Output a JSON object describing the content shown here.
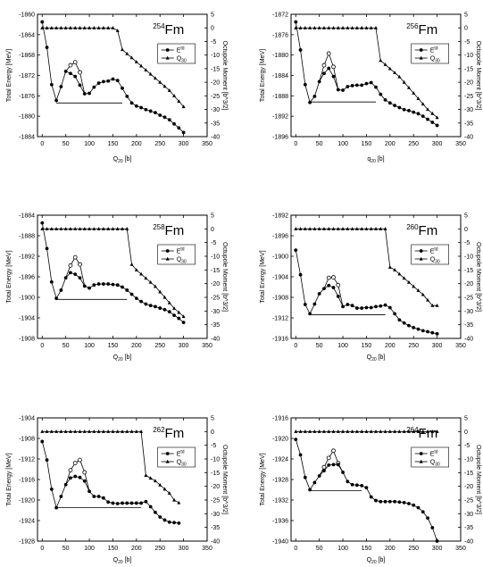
{
  "chart_data": [
    {
      "type": "line",
      "nucleus_mass": "254",
      "nucleus_sym": "Fm",
      "xlabel_main": "Q",
      "xlabel_sub": "20",
      "xlabel_unit": " [b]",
      "ylabel_left": "Total Energy [MeV]",
      "ylabel_right": "Octupole Moment [b^3/2]",
      "legend": [
        {
          "main": "E",
          "sup": "td"
        },
        {
          "main": "Q",
          "sub": "30"
        }
      ],
      "xlim": [
        -10,
        350
      ],
      "ylim": [
        -1884,
        -1860
      ],
      "y2lim": [
        -40,
        5
      ],
      "xticks": [
        0,
        50,
        100,
        150,
        200,
        250,
        300,
        350
      ],
      "yticks": [
        -1884,
        -1880,
        -1876,
        -1872,
        -1868,
        -1864,
        -1860
      ],
      "y2ticks": [
        5,
        0,
        -5,
        -10,
        -15,
        -20,
        -25,
        -30,
        -35,
        -40
      ],
      "energy_x": [
        0,
        10,
        20,
        30,
        40,
        50,
        60,
        70,
        80,
        90,
        100,
        110,
        120,
        130,
        140,
        150,
        160,
        170,
        180,
        190,
        200,
        210,
        220,
        230,
        240,
        250,
        260,
        270,
        280,
        290,
        300
      ],
      "energy_y": [
        -1861.5,
        -1866.5,
        -1873.8,
        -1876.9,
        -1874.2,
        -1871.2,
        -1871.6,
        -1872.2,
        -1873.9,
        -1875.6,
        -1875.5,
        -1874.3,
        -1873.5,
        -1873.2,
        -1873.1,
        -1872.7,
        -1873.0,
        -1874.5,
        -1876.1,
        -1877.4,
        -1878.0,
        -1878.3,
        -1878.7,
        -1879.0,
        -1879.3,
        -1879.8,
        -1880.2,
        -1880.7,
        -1881.5,
        -1882.3,
        -1883.2
      ],
      "energy_open_x": [
        60,
        70,
        80
      ],
      "energy_open_y": [
        -1870.0,
        -1869.4,
        -1871.4
      ],
      "barrier": {
        "x1": 30,
        "x2": 170,
        "y": -1877.4
      },
      "q30_x": [
        0,
        10,
        20,
        30,
        40,
        50,
        60,
        70,
        80,
        90,
        100,
        110,
        120,
        130,
        140,
        150,
        160,
        170,
        180,
        190,
        200,
        210,
        220,
        230,
        240,
        250,
        260,
        270,
        280,
        290,
        300
      ],
      "q30_y": [
        0,
        0,
        0,
        0,
        0,
        0,
        0,
        0,
        0,
        0,
        0,
        0,
        0,
        0,
        0,
        0,
        -1,
        -8,
        -9.5,
        -11,
        -12.5,
        -14,
        -15.5,
        -17,
        -18.5,
        -20,
        -21.5,
        -23,
        -25,
        -27,
        -29
      ]
    },
    {
      "type": "line",
      "nucleus_mass": "256",
      "nucleus_sym": "Fm",
      "xlabel_main": "q",
      "xlabel_sub": "20",
      "xlabel_unit": " [b]",
      "ylabel_left": "Total Energy [MeV]",
      "ylabel_right": "Octupole Moment [b^3/2]",
      "legend": [
        {
          "main": "E",
          "sup": "td"
        },
        {
          "main": "Q",
          "sub": "30"
        }
      ],
      "xlim": [
        -10,
        350
      ],
      "ylim": [
        -1896,
        -1872
      ],
      "y2lim": [
        -40,
        5
      ],
      "xticks": [
        0,
        50,
        100,
        150,
        200,
        250,
        300,
        350
      ],
      "yticks": [
        -1896,
        -1892,
        -1888,
        -1884,
        -1880,
        -1876,
        -1872
      ],
      "y2ticks": [
        5,
        0,
        -5,
        -10,
        -15,
        -20,
        -25,
        -30,
        -35,
        -40
      ],
      "energy_x": [
        0,
        10,
        20,
        30,
        40,
        50,
        60,
        70,
        80,
        90,
        100,
        110,
        120,
        130,
        140,
        150,
        160,
        170,
        180,
        190,
        200,
        210,
        220,
        230,
        240,
        250,
        260,
        270,
        280,
        290,
        300
      ],
      "energy_y": [
        -1873.5,
        -1879.0,
        -1885.8,
        -1889.3,
        -1888.1,
        -1885.2,
        -1883.6,
        -1882.6,
        -1884.2,
        -1886.8,
        -1886.9,
        -1886.2,
        -1886.0,
        -1885.9,
        -1885.9,
        -1885.6,
        -1885.4,
        -1886.3,
        -1887.7,
        -1888.8,
        -1889.4,
        -1889.9,
        -1890.3,
        -1890.7,
        -1890.9,
        -1891.2,
        -1891.5,
        -1892.0,
        -1892.6,
        -1893.2,
        -1893.8
      ],
      "energy_open_x": [
        60,
        70,
        80
      ],
      "energy_open_y": [
        -1882.0,
        -1879.7,
        -1882.3
      ],
      "barrier": {
        "x1": 30,
        "x2": 170,
        "y": -1889.2
      },
      "q30_x": [
        0,
        10,
        20,
        30,
        40,
        50,
        60,
        70,
        80,
        90,
        100,
        110,
        120,
        130,
        140,
        150,
        160,
        170,
        180,
        190,
        200,
        210,
        220,
        230,
        240,
        250,
        260,
        270,
        280,
        290,
        300
      ],
      "q30_y": [
        0,
        0,
        0,
        0,
        0,
        0,
        0,
        0,
        0,
        0,
        0,
        0,
        0,
        0,
        0,
        0,
        0,
        0,
        -12,
        -13.5,
        -15,
        -16.5,
        -18,
        -20,
        -22,
        -24,
        -26,
        -28,
        -30,
        -31.5,
        -33
      ]
    },
    {
      "type": "line",
      "nucleus_mass": "258",
      "nucleus_sym": "Fm",
      "xlabel_main": "Q",
      "xlabel_sub": "20",
      "xlabel_unit": " [b]",
      "ylabel_left": "Total Energy [MeV]",
      "ylabel_right": "Octupole Moment [b^3/2]",
      "legend": [
        {
          "main": "E",
          "sup": "td"
        },
        {
          "main": "Q",
          "sub": "30"
        }
      ],
      "xlim": [
        -10,
        350
      ],
      "ylim": [
        -1908,
        -1884
      ],
      "y2lim": [
        -40,
        5
      ],
      "xticks": [
        0,
        50,
        100,
        150,
        200,
        250,
        300,
        350
      ],
      "yticks": [
        -1908,
        -1904,
        -1900,
        -1896,
        -1892,
        -1888,
        -1884
      ],
      "y2ticks": [
        5,
        0,
        -5,
        -10,
        -15,
        -20,
        -25,
        -30,
        -35,
        -40
      ],
      "energy_x": [
        0,
        10,
        20,
        30,
        40,
        50,
        60,
        70,
        80,
        90,
        100,
        110,
        120,
        130,
        140,
        150,
        160,
        170,
        180,
        190,
        200,
        210,
        220,
        230,
        240,
        250,
        260,
        270,
        280,
        290,
        300
      ],
      "energy_y": [
        -1885.5,
        -1890.5,
        -1897.0,
        -1900.2,
        -1898.6,
        -1896.2,
        -1895.2,
        -1895.5,
        -1896.2,
        -1897.8,
        -1898.2,
        -1897.6,
        -1897.4,
        -1897.4,
        -1897.4,
        -1897.5,
        -1897.6,
        -1898.0,
        -1898.6,
        -1899.4,
        -1900.2,
        -1900.8,
        -1901.3,
        -1901.6,
        -1901.8,
        -1902.1,
        -1902.4,
        -1902.8,
        -1903.5,
        -1904.1,
        -1904.9
      ],
      "energy_open_x": [
        60,
        70,
        80
      ],
      "energy_open_y": [
        -1893.8,
        -1892.2,
        -1893.6
      ],
      "barrier": {
        "x1": 30,
        "x2": 180,
        "y": -1900.4
      },
      "q30_x": [
        0,
        10,
        20,
        30,
        40,
        50,
        60,
        70,
        80,
        90,
        100,
        110,
        120,
        130,
        140,
        150,
        160,
        170,
        180,
        190,
        200,
        210,
        220,
        230,
        240,
        250,
        260,
        270,
        280,
        290,
        300
      ],
      "q30_y": [
        0,
        0,
        0,
        0,
        0,
        0,
        0,
        0,
        0,
        0,
        0,
        0,
        0,
        0,
        0,
        0,
        0,
        0,
        0,
        -13,
        -15,
        -16.5,
        -18,
        -19.5,
        -21,
        -23,
        -25,
        -27,
        -29,
        -30.5,
        -32
      ]
    },
    {
      "type": "line",
      "nucleus_mass": "260",
      "nucleus_sym": "Fm",
      "xlabel_main": "Q",
      "xlabel_sub": "20",
      "xlabel_unit": " [b]",
      "ylabel_left": "Total Energy [MeV]",
      "ylabel_right": "Octupole Moment [b^3/2]",
      "legend": [
        {
          "main": "E",
          "sup": "td"
        },
        {
          "main": "Q",
          "sub": "30"
        }
      ],
      "xlim": [
        -10,
        350
      ],
      "ylim": [
        -1916,
        -1892
      ],
      "y2lim": [
        -40,
        5
      ],
      "xticks": [
        0,
        50,
        100,
        150,
        200,
        250,
        300,
        350
      ],
      "yticks": [
        -1916,
        -1912,
        -1908,
        -1904,
        -1900,
        -1896,
        -1892
      ],
      "y2ticks": [
        5,
        0,
        -5,
        -10,
        -15,
        -20,
        -25,
        -30,
        -35,
        -40
      ],
      "energy_x": [
        0,
        10,
        20,
        30,
        40,
        50,
        60,
        70,
        80,
        90,
        100,
        110,
        120,
        130,
        140,
        150,
        160,
        170,
        180,
        190,
        200,
        210,
        220,
        230,
        240,
        250,
        260,
        270,
        280,
        290,
        300
      ],
      "energy_y": [
        -1898.8,
        -1903.6,
        -1909.4,
        -1911.2,
        -1909.3,
        -1907.3,
        -1906.3,
        -1905.7,
        -1906.1,
        -1907.8,
        -1909.8,
        -1909.4,
        -1909.6,
        -1910.1,
        -1910.1,
        -1910.0,
        -1910.0,
        -1909.8,
        -1909.7,
        -1909.5,
        -1910.0,
        -1911.2,
        -1912.4,
        -1913.0,
        -1913.5,
        -1913.9,
        -1914.2,
        -1914.5,
        -1914.7,
        -1914.9,
        -1915.1
      ],
      "energy_open_x": [
        70,
        80,
        90
      ],
      "energy_open_y": [
        -1904.2,
        -1904.1,
        -1905.6
      ],
      "barrier": {
        "x1": 30,
        "x2": 190,
        "y": -1911.4
      },
      "q30_x": [
        0,
        10,
        20,
        30,
        40,
        50,
        60,
        70,
        80,
        90,
        100,
        110,
        120,
        130,
        140,
        150,
        160,
        170,
        180,
        190,
        200,
        210,
        220,
        230,
        240,
        250,
        260,
        270,
        280,
        290,
        300
      ],
      "q30_y": [
        0,
        0,
        0,
        0,
        0,
        0,
        0,
        0,
        0,
        0,
        0,
        0,
        0,
        0,
        0,
        0,
        0,
        0,
        0,
        0,
        -14,
        -15,
        -16.5,
        -18,
        -19.5,
        -21,
        -22.5,
        -24,
        -26,
        -28,
        -28
      ]
    },
    {
      "type": "line",
      "nucleus_mass": "262",
      "nucleus_sym": "Fm",
      "xlabel_main": "Q",
      "xlabel_sub": "20",
      "xlabel_unit": " [b]",
      "ylabel_left": "Total Energy [MeV]",
      "ylabel_right": "Octupole Moment [b^3/2]",
      "legend": [
        {
          "main": "E",
          "sup": "td"
        },
        {
          "main": "Q",
          "sub": "30"
        }
      ],
      "xlim": [
        -10,
        350
      ],
      "ylim": [
        -1928,
        -1904
      ],
      "y2lim": [
        -40,
        5
      ],
      "xticks": [
        0,
        50,
        100,
        150,
        200,
        250,
        300,
        350
      ],
      "yticks": [
        -1928,
        -1924,
        -1920,
        -1916,
        -1912,
        -1908,
        -1904
      ],
      "y2ticks": [
        5,
        0,
        -5,
        -10,
        -15,
        -20,
        -25,
        -30,
        -35,
        -40
      ],
      "energy_x": [
        0,
        10,
        20,
        30,
        40,
        50,
        60,
        70,
        80,
        90,
        100,
        110,
        120,
        130,
        140,
        150,
        160,
        170,
        180,
        190,
        200,
        210,
        220,
        230,
        240,
        250,
        260,
        270,
        280,
        290
      ],
      "energy_y": [
        -1908.6,
        -1912.2,
        -1917.9,
        -1921.5,
        -1919.3,
        -1917.0,
        -1915.7,
        -1915.4,
        -1915.6,
        -1916.3,
        -1918.3,
        -1919.3,
        -1919.3,
        -1919.6,
        -1920.4,
        -1920.6,
        -1920.7,
        -1920.6,
        -1920.6,
        -1920.6,
        -1920.6,
        -1920.6,
        -1920.3,
        -1921.3,
        -1922.4,
        -1923.3,
        -1923.9,
        -1924.3,
        -1924.4,
        -1924.5
      ],
      "energy_open_x": [
        60,
        70,
        80,
        90
      ],
      "energy_open_y": [
        -1914.2,
        -1912.8,
        -1912.2,
        -1914.6
      ],
      "barrier": {
        "x1": 30,
        "x2": 210,
        "y": -1921.5
      },
      "q30_x": [
        0,
        10,
        20,
        30,
        40,
        50,
        60,
        70,
        80,
        90,
        100,
        110,
        120,
        130,
        140,
        150,
        160,
        170,
        180,
        190,
        200,
        210,
        220,
        230,
        240,
        250,
        260,
        270,
        280,
        290
      ],
      "q30_y": [
        0,
        0,
        0,
        0,
        0,
        0,
        0,
        0,
        0,
        0,
        0,
        0,
        0,
        0,
        0,
        0,
        0,
        0,
        0,
        0,
        0,
        0,
        -16,
        -17,
        -18,
        -19.5,
        -21,
        -22.5,
        -25,
        -26
      ]
    },
    {
      "type": "line",
      "nucleus_mass": "264",
      "nucleus_sym": "Fm",
      "xlabel_main": "Q",
      "xlabel_sub": "20",
      "xlabel_unit": " [b]",
      "ylabel_left": "Total Energy [MeV]",
      "ylabel_right": "Octupole Moment [b^3/2]",
      "legend": [
        {
          "main": "E",
          "sup": "td"
        },
        {
          "main": "Q",
          "sub": "30"
        }
      ],
      "xlim": [
        -10,
        350
      ],
      "ylim": [
        -1940,
        -1916
      ],
      "y2lim": [
        -40,
        5
      ],
      "xticks": [
        0,
        50,
        100,
        150,
        200,
        250,
        300,
        350
      ],
      "yticks": [
        -1940,
        -1936,
        -1932,
        -1928,
        -1924,
        -1920,
        -1916
      ],
      "y2ticks": [
        5,
        0,
        -5,
        -10,
        -15,
        -20,
        -25,
        -30,
        -35,
        -40
      ],
      "energy_x": [
        0,
        10,
        20,
        30,
        40,
        50,
        60,
        70,
        80,
        90,
        100,
        110,
        120,
        130,
        140,
        150,
        160,
        170,
        180,
        190,
        200,
        210,
        220,
        230,
        240,
        250,
        260,
        270,
        280,
        290,
        300
      ],
      "energy_y": [
        -1920.2,
        -1923.2,
        -1927.6,
        -1930.0,
        -1928.6,
        -1927.3,
        -1926.3,
        -1925.2,
        -1925.1,
        -1925.1,
        -1926.6,
        -1928.4,
        -1929.0,
        -1929.1,
        -1929.2,
        -1929.6,
        -1931.4,
        -1932.1,
        -1932.3,
        -1932.3,
        -1932.3,
        -1932.3,
        -1932.4,
        -1932.5,
        -1932.7,
        -1933.0,
        -1933.5,
        -1934.3,
        -1935.5,
        -1937.4,
        -1940.0
      ],
      "energy_open_x": [
        60,
        70,
        80,
        90
      ],
      "energy_open_y": [
        -1925.6,
        -1923.8,
        -1922.4,
        -1924.8
      ],
      "barrier": {
        "x1": 30,
        "x2": 140,
        "y": -1930.2
      },
      "q30_x": [
        0,
        10,
        20,
        30,
        40,
        50,
        60,
        70,
        80,
        90,
        100,
        110,
        120,
        130,
        140,
        150,
        160,
        170,
        180,
        190,
        200,
        210,
        220,
        230,
        240,
        250,
        260,
        270,
        280,
        290,
        300
      ],
      "q30_y": [
        0,
        0,
        0,
        0,
        0,
        0,
        0,
        0,
        0,
        0,
        0,
        0,
        0,
        0,
        0,
        0,
        0,
        0,
        0,
        0,
        0,
        0,
        0,
        0,
        0,
        0,
        0,
        0,
        0,
        0,
        0
      ]
    }
  ]
}
